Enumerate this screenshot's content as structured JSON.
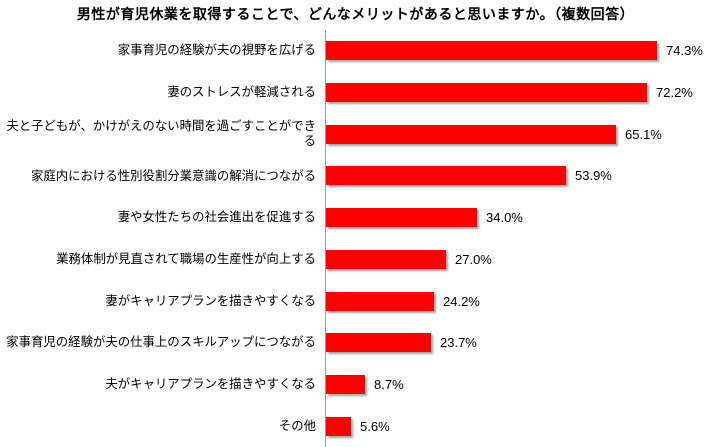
{
  "title": "男性が育児休業を取得することで、どんなメリットがあると思いますか。（複数回答）",
  "colors": {
    "bar": "#FF0000",
    "axis_line": "#9C9C9C",
    "text": "#000000",
    "background": "#FFFFFF"
  },
  "chart_data": {
    "type": "bar",
    "orientation": "horizontal",
    "title": "男性が育児休業を取得することで、どんなメリットがあると思いますか。（複数回答）",
    "categories": [
      "家事育児の経験が夫の視野を広げる",
      "妻のストレスが軽減される",
      "夫と子どもが、かけがえのない時間を過ごすことができる",
      "家庭内における性別役割分業意識の解消につながる",
      "妻や女性たちの社会進出を促進する",
      "業務体制が見直されて職場の生産性が向上する",
      "妻がキャリアプランを描きやすくなる",
      "家事育児の経験が夫の仕事上のスキルアップにつながる",
      "夫がキャリアプランを描きやすくなる",
      "その他"
    ],
    "values": [
      74.3,
      72.2,
      65.1,
      53.9,
      34.0,
      27.0,
      24.2,
      23.7,
      8.7,
      5.6
    ],
    "value_labels": [
      "74.3%",
      "72.2%",
      "65.1%",
      "53.9%",
      "34.0%",
      "27.0%",
      "24.2%",
      "23.7%",
      "8.7%",
      "5.6%"
    ],
    "xlabel": "",
    "ylabel": "",
    "xlim": [
      0,
      86
    ],
    "grid": false,
    "legend": false,
    "data_labels": true
  }
}
